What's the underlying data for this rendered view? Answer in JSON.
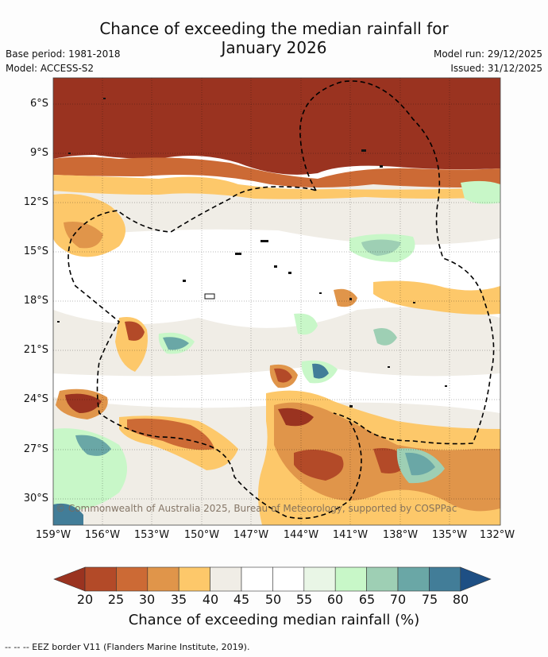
{
  "header": {
    "title_line1": "Chance of exceeding the median rainfall for",
    "title_line2": "January 2026",
    "base_period": "Base period: 1981-2018",
    "model": "Model: ACCESS-S2",
    "model_run": "Model run: 29/12/2025",
    "issued": "Issued: 31/12/2025"
  },
  "map": {
    "lat_labels": [
      "6°S",
      "9°S",
      "12°S",
      "15°S",
      "18°S",
      "21°S",
      "24°S",
      "27°S",
      "30°S"
    ],
    "lon_labels": [
      "159°W",
      "156°W",
      "153°W",
      "150°W",
      "147°W",
      "144°W",
      "141°W",
      "138°W",
      "135°W",
      "132°W"
    ],
    "copyright": "© Commonwealth of Australia 2025, Bureau of Meteorology, supported by COSPPac",
    "border_color": "#000000"
  },
  "colorbar": {
    "ticks": [
      "20",
      "25",
      "30",
      "35",
      "40",
      "45",
      "50",
      "55",
      "60",
      "65",
      "70",
      "75",
      "80"
    ],
    "colors": [
      "#9a3320",
      "#b34a28",
      "#cc6a35",
      "#e0954a",
      "#fdc86a",
      "#f0ede6",
      "#ffffff",
      "#ffffff",
      "#e9f6e6",
      "#c8f7c8",
      "#9ecfb4",
      "#6aa7a6",
      "#427d98",
      "#1e4f84"
    ],
    "label": "Chance of exceeding median rainfall (%)"
  },
  "footer": {
    "legend_text": "--  --  -- EEZ border V11 (Flanders Marine Institute, 2019)."
  }
}
